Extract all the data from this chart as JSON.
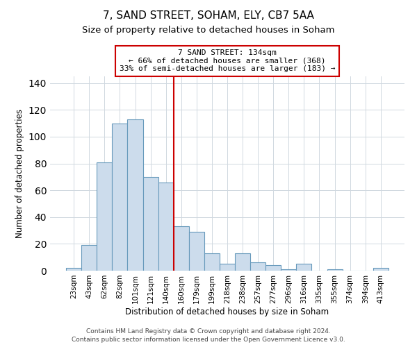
{
  "title": "7, SAND STREET, SOHAM, ELY, CB7 5AA",
  "subtitle": "Size of property relative to detached houses in Soham",
  "xlabel": "Distribution of detached houses by size in Soham",
  "ylabel": "Number of detached properties",
  "bar_labels": [
    "23sqm",
    "43sqm",
    "62sqm",
    "82sqm",
    "101sqm",
    "121sqm",
    "140sqm",
    "160sqm",
    "179sqm",
    "199sqm",
    "218sqm",
    "238sqm",
    "257sqm",
    "277sqm",
    "296sqm",
    "316sqm",
    "335sqm",
    "355sqm",
    "374sqm",
    "394sqm",
    "413sqm"
  ],
  "bar_values": [
    2,
    19,
    81,
    110,
    113,
    70,
    66,
    33,
    29,
    13,
    5,
    13,
    6,
    4,
    1,
    5,
    0,
    1,
    0,
    0,
    2
  ],
  "bar_color": "#ccdcec",
  "bar_edge_color": "#6699bb",
  "ylim": [
    0,
    145
  ],
  "vline_x_index": 6,
  "vline_color": "#cc0000",
  "annotation_title": "7 SAND STREET: 134sqm",
  "annotation_line1": "← 66% of detached houses are smaller (368)",
  "annotation_line2": "33% of semi-detached houses are larger (183) →",
  "annotation_box_color": "#ffffff",
  "annotation_box_edge": "#cc0000",
  "footer1": "Contains HM Land Registry data © Crown copyright and database right 2024.",
  "footer2": "Contains public sector information licensed under the Open Government Licence v3.0.",
  "grid_color": "#d0d8e0",
  "background_color": "#ffffff",
  "title_fontsize": 11,
  "subtitle_fontsize": 9.5,
  "axis_label_fontsize": 8.5,
  "tick_fontsize": 7.5,
  "annotation_fontsize": 8,
  "footer_fontsize": 6.5
}
